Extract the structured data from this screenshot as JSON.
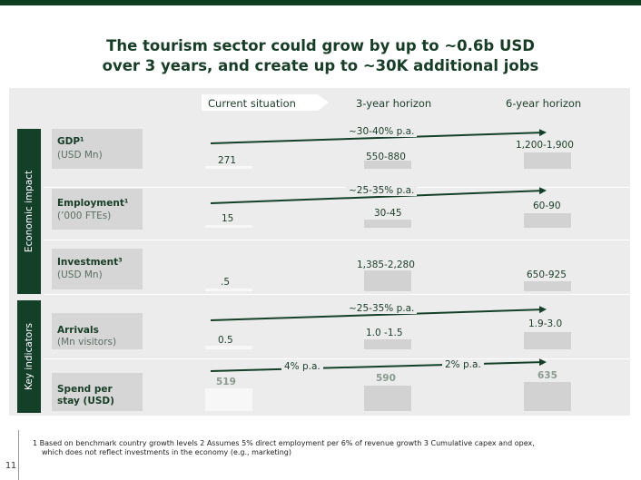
{
  "title_line1": "The tourism sector could grow by up to ~0.6b USD",
  "title_line2": "over 3 years, and create up to ~30K additional jobs",
  "headers": {
    "current": "Current situation",
    "three_year": "3-year horizon",
    "six_year": "6-year horizon"
  },
  "sections": {
    "economic": "Economic impact",
    "key": "Key indicators"
  },
  "rows": {
    "gdp": {
      "label": "GDP¹",
      "unit": "(USD Mn)",
      "current": "271",
      "three": "550-880",
      "six": "1,200-1,900",
      "growth": "~30-40% p.a."
    },
    "employment": {
      "label": "Employment¹",
      "unit": "(’000 FTEs)",
      "current": "15",
      "three": "30-45",
      "six": "60-90",
      "growth": "~25-35% p.a."
    },
    "investment": {
      "label": "Investment³",
      "unit": "(USD Mn)",
      "current": ".5",
      "three": "1,385-2,280",
      "six": "650-925"
    },
    "arrivals": {
      "label": "Arrivals",
      "unit": "(Mn visitors)",
      "current": "0.5",
      "three": "1.0 -1.5",
      "six": "1.9-3.0",
      "growth": "~25-35% p.a."
    },
    "spend": {
      "label": "Spend per",
      "label2": "stay (USD)",
      "current": "519",
      "three": "590",
      "six": "635",
      "growth_a": "4% p.a.",
      "growth_b": "2% p.a."
    }
  },
  "footnote_line1": "1 Based on benchmark country growth levels  2 Assumes 5% direct employment per 6% of  revenue growth 3 Cumulative capex and opex,",
  "footnote_line2": "which does not reflect investments in the economy (e.g., marketing)",
  "page_number": "11",
  "colors": {
    "brand_dark": "#14402a",
    "panel": "#ececec",
    "bar": "#d2d2d2"
  }
}
